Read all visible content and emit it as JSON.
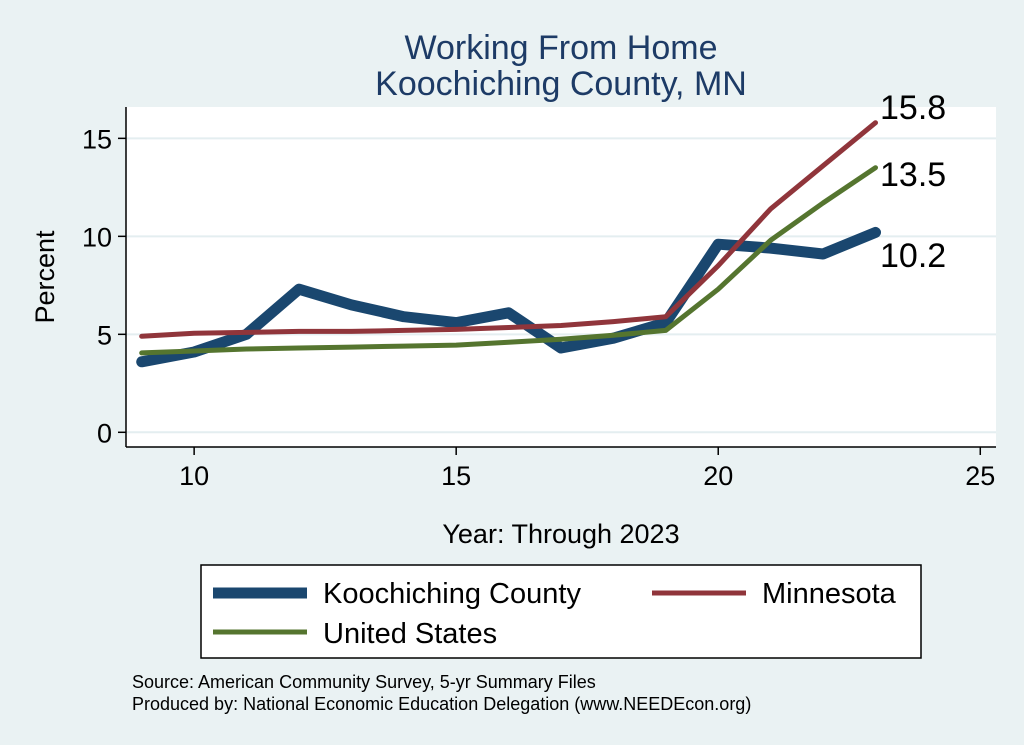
{
  "chart_data": {
    "type": "line",
    "title_lines": [
      "Working From Home",
      "Koochiching County, MN"
    ],
    "xlabel": "Year: Through 2023",
    "ylabel": "Percent",
    "xlim": [
      8.7,
      25.3
    ],
    "ylim": [
      -0.75,
      16.6
    ],
    "xticks": [
      10,
      15,
      20,
      25
    ],
    "yticks": [
      0,
      5,
      10,
      15
    ],
    "grid": "horizontal",
    "legend_position": "bottom",
    "series": [
      {
        "name": "Koochiching County",
        "color": "#1a476f",
        "x": [
          9,
          10,
          11,
          12,
          13,
          14,
          15,
          16,
          17,
          18,
          19,
          20,
          21,
          22,
          23
        ],
        "values": [
          3.6,
          4.1,
          5.0,
          7.3,
          6.5,
          5.9,
          5.6,
          6.1,
          4.3,
          4.8,
          5.6,
          9.6,
          9.4,
          9.1,
          10.2
        ]
      },
      {
        "name": "Minnesota",
        "color": "#90353b",
        "x": [
          9,
          10,
          11,
          12,
          13,
          14,
          15,
          16,
          17,
          18,
          19,
          20,
          21,
          22,
          23
        ],
        "values": [
          4.9,
          5.05,
          5.1,
          5.15,
          5.15,
          5.2,
          5.25,
          5.35,
          5.45,
          5.65,
          5.9,
          8.5,
          11.4,
          13.6,
          15.8
        ]
      },
      {
        "name": "United States",
        "color": "#55752f",
        "x": [
          9,
          10,
          11,
          12,
          13,
          14,
          15,
          16,
          17,
          18,
          19,
          20,
          21,
          22,
          23
        ],
        "values": [
          4.05,
          4.15,
          4.25,
          4.3,
          4.35,
          4.4,
          4.45,
          4.6,
          4.75,
          4.95,
          5.2,
          7.3,
          9.8,
          11.7,
          13.5
        ]
      }
    ],
    "end_labels": [
      "15.8",
      "13.5",
      "10.2"
    ],
    "notes": [
      "Source: American Community Survey, 5-yr Summary Files",
      "Produced by: National Economic Education Delegation (www.NEEDEcon.org)"
    ]
  }
}
